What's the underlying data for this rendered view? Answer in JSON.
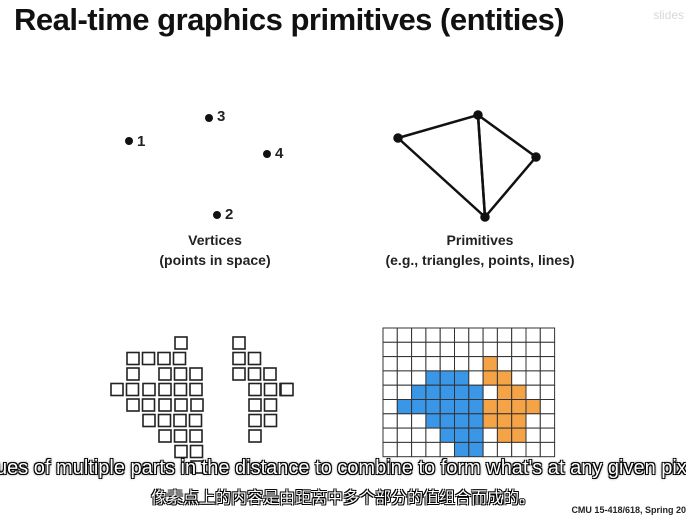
{
  "slide": {
    "title": "Real-time graphics primitives (entities)",
    "watermark": "slides",
    "footer": "CMU 15-418/618, Spring 20"
  },
  "vertices": {
    "labels": [
      "1",
      "2",
      "3",
      "4"
    ],
    "caption_line1": "Vertices",
    "caption_line2": "(points in space)"
  },
  "primitives": {
    "caption_line1": "Primitives",
    "caption_line2": "(e.g., triangles, points, lines)"
  },
  "fragment_colors": {
    "blue": "#3a96e6",
    "orange": "#f5a347",
    "grid": "#333333"
  },
  "subtitles": {
    "english": "ues of multiple parts in the distance to combine to form what's at any given pix",
    "chinese": "像素点上的内容是由距离中多个部分的值组合而成的。"
  }
}
